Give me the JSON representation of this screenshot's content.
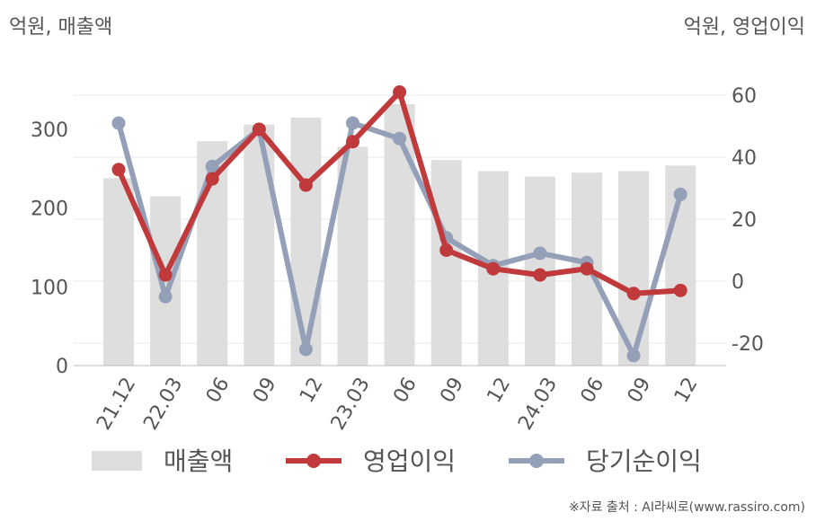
{
  "left_unit_label": "억원, 매출액",
  "right_unit_label": "억원, 영업이익",
  "source": "※자료 출처 : AI라씨로(www.rassiro.com)",
  "colors": {
    "revenue": "#dedede",
    "operating_profit": "#c0393b",
    "net_income": "#94a0b8",
    "grid": "#e8e8e8",
    "text": "#555555"
  },
  "chart_data": {
    "type": "bar",
    "categories": [
      "21.12",
      "22.03",
      "06",
      "09",
      "12",
      "23.03",
      "06",
      "09",
      "12",
      "24.03",
      "06",
      "09",
      "12"
    ],
    "series": [
      {
        "name": "매출액",
        "type": "bar",
        "axis": "left",
        "values": [
          238,
          215,
          285,
          306,
          315,
          278,
          332,
          261,
          247,
          240,
          245,
          247,
          254
        ]
      },
      {
        "name": "영업이익",
        "type": "line",
        "axis": "right",
        "values": [
          36,
          2,
          33,
          49,
          31,
          45,
          61,
          10,
          4,
          2,
          4,
          -4,
          -3
        ]
      },
      {
        "name": "당기순이익",
        "type": "line",
        "axis": "right",
        "values": [
          51,
          -5,
          37,
          49,
          -22,
          51,
          46,
          14,
          5,
          9,
          6,
          -24,
          28
        ]
      }
    ],
    "y_left": {
      "min": 0,
      "max": 345,
      "ticks": [
        0,
        100,
        200,
        300
      ]
    },
    "y_right": {
      "min": -28,
      "max": 62,
      "ticks": [
        -20,
        0,
        20,
        40,
        60
      ]
    },
    "legend_position": "bottom",
    "grid": true
  }
}
